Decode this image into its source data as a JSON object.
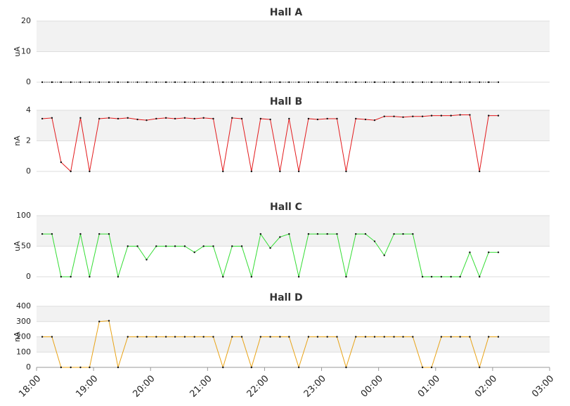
{
  "chart_data": [
    {
      "type": "line",
      "title": "Hall A",
      "ylabel": "uA",
      "color": "#222222",
      "dotted": true,
      "xlim": [
        18,
        27
      ],
      "ylim": [
        0,
        20
      ],
      "yticks": [
        0,
        10,
        20
      ],
      "x": [
        18.1,
        18.27,
        18.43,
        18.6,
        18.77,
        18.93,
        19.1,
        19.27,
        19.43,
        19.6,
        19.77,
        19.93,
        20.1,
        20.27,
        20.43,
        20.6,
        20.77,
        20.93,
        21.1,
        21.27,
        21.43,
        21.6,
        21.77,
        21.93,
        22.1,
        22.27,
        22.43,
        22.6,
        22.77,
        22.93,
        23.1,
        23.27,
        23.43,
        23.6,
        23.77,
        23.93,
        24.1,
        24.27,
        24.43,
        24.6,
        24.77,
        24.93,
        25.1,
        25.27,
        25.43,
        25.6,
        25.77,
        25.93,
        26.1
      ],
      "values": [
        0,
        0,
        0,
        0,
        0,
        0,
        0,
        0,
        0,
        0,
        0,
        0,
        0,
        0,
        0,
        0,
        0,
        0,
        0,
        0,
        0,
        0,
        0,
        0,
        0,
        0,
        0,
        0,
        0,
        0,
        0,
        0,
        0,
        0,
        0,
        0,
        0,
        0,
        0,
        0,
        0,
        0,
        0,
        0,
        0,
        0,
        0,
        0,
        0
      ]
    },
    {
      "type": "line",
      "title": "Hall B",
      "ylabel": "nA",
      "color": "#e31a1c",
      "xlim": [
        18,
        27
      ],
      "ylim": [
        0,
        4
      ],
      "yticks": [
        0,
        2,
        4
      ],
      "x": [
        18.1,
        18.27,
        18.43,
        18.6,
        18.77,
        18.93,
        19.1,
        19.27,
        19.43,
        19.6,
        19.77,
        19.93,
        20.1,
        20.27,
        20.43,
        20.6,
        20.77,
        20.93,
        21.1,
        21.27,
        21.43,
        21.6,
        21.77,
        21.93,
        22.1,
        22.27,
        22.43,
        22.6,
        22.77,
        22.93,
        23.1,
        23.27,
        23.43,
        23.6,
        23.77,
        23.93,
        24.1,
        24.27,
        24.43,
        24.6,
        24.77,
        24.93,
        25.1,
        25.27,
        25.43,
        25.6,
        25.77,
        25.93,
        26.1
      ],
      "values": [
        3.45,
        3.5,
        0.6,
        0,
        3.5,
        0,
        3.45,
        3.5,
        3.45,
        3.5,
        3.4,
        3.35,
        3.45,
        3.5,
        3.45,
        3.5,
        3.45,
        3.5,
        3.45,
        0,
        3.5,
        3.45,
        0,
        3.45,
        3.4,
        0,
        3.45,
        0,
        3.45,
        3.4,
        3.45,
        3.45,
        0,
        3.45,
        3.4,
        3.35,
        3.6,
        3.6,
        3.55,
        3.6,
        3.6,
        3.65,
        3.65,
        3.65,
        3.7,
        3.7,
        0,
        3.65,
        3.65
      ]
    },
    {
      "type": "line",
      "title": "Hall C",
      "ylabel": "uA",
      "color": "#33dd33",
      "xlim": [
        18,
        27
      ],
      "ylim": [
        0,
        100
      ],
      "yticks": [
        0,
        50,
        100
      ],
      "x": [
        18.1,
        18.27,
        18.43,
        18.6,
        18.77,
        18.93,
        19.1,
        19.27,
        19.43,
        19.6,
        19.77,
        19.93,
        20.1,
        20.27,
        20.43,
        20.6,
        20.77,
        20.93,
        21.1,
        21.27,
        21.43,
        21.6,
        21.77,
        21.93,
        22.1,
        22.27,
        22.43,
        22.6,
        22.77,
        22.93,
        23.1,
        23.27,
        23.43,
        23.6,
        23.77,
        23.93,
        24.1,
        24.27,
        24.43,
        24.6,
        24.77,
        24.93,
        25.1,
        25.27,
        25.43,
        25.6,
        25.77,
        25.93,
        26.1
      ],
      "values": [
        70,
        70,
        0,
        0,
        70,
        0,
        70,
        70,
        0,
        50,
        50,
        28,
        50,
        50,
        50,
        50,
        40,
        50,
        50,
        0,
        50,
        50,
        0,
        70,
        47,
        65,
        70,
        0,
        70,
        70,
        70,
        70,
        0,
        70,
        70,
        58,
        35,
        70,
        70,
        70,
        0,
        0,
        0,
        0,
        0,
        40,
        0,
        40,
        40
      ]
    },
    {
      "type": "line",
      "title": "Hall D",
      "ylabel": "nA",
      "color": "#e8a317",
      "xlim": [
        18,
        27
      ],
      "ylim": [
        0,
        400
      ],
      "yticks": [
        0,
        100,
        200,
        300,
        400
      ],
      "xticks": [
        {
          "value": 18,
          "label": "18:00"
        },
        {
          "value": 19,
          "label": "19:00"
        },
        {
          "value": 20,
          "label": "20:00"
        },
        {
          "value": 21,
          "label": "21:00"
        },
        {
          "value": 22,
          "label": "22:00"
        },
        {
          "value": 23,
          "label": "23:00"
        },
        {
          "value": 24,
          "label": "00:00"
        },
        {
          "value": 25,
          "label": "01:00"
        },
        {
          "value": 26,
          "label": "02:00"
        },
        {
          "value": 27,
          "label": "03:00"
        }
      ],
      "x": [
        18.1,
        18.27,
        18.43,
        18.6,
        18.77,
        18.93,
        19.1,
        19.27,
        19.43,
        19.6,
        19.77,
        19.93,
        20.1,
        20.27,
        20.43,
        20.6,
        20.77,
        20.93,
        21.1,
        21.27,
        21.43,
        21.6,
        21.77,
        21.93,
        22.1,
        22.27,
        22.43,
        22.6,
        22.77,
        22.93,
        23.1,
        23.27,
        23.43,
        23.6,
        23.77,
        23.93,
        24.1,
        24.27,
        24.43,
        24.6,
        24.77,
        24.93,
        25.1,
        25.27,
        25.43,
        25.6,
        25.77,
        25.93,
        26.1
      ],
      "values": [
        200,
        200,
        0,
        0,
        0,
        0,
        300,
        305,
        0,
        200,
        200,
        200,
        200,
        200,
        200,
        200,
        200,
        200,
        200,
        0,
        200,
        200,
        0,
        200,
        200,
        200,
        200,
        0,
        200,
        200,
        200,
        200,
        0,
        200,
        200,
        200,
        200,
        200,
        200,
        200,
        0,
        0,
        200,
        200,
        200,
        200,
        0,
        200,
        200
      ]
    }
  ]
}
